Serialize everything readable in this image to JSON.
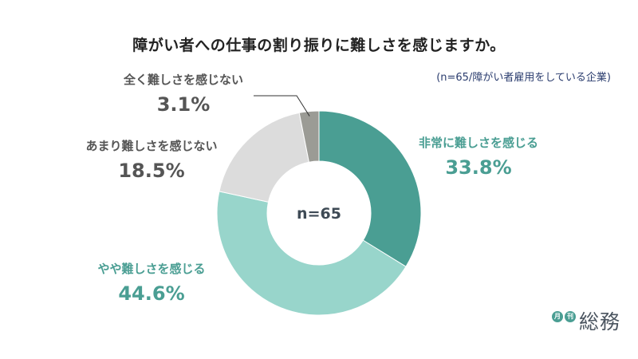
{
  "title": "障がい者への仕事の割り振りに難しさを感じますか。",
  "subtitle": "(n=65/障がい者雇用をしている企業)",
  "brand": {
    "tag1": "月",
    "tag2": "刊",
    "name": "総務"
  },
  "chart_data": {
    "type": "pie",
    "title": "障がい者への仕事の割り振りに難しさを感じますか。",
    "subtitle": "(n=65/障がい者雇用をしている企業)",
    "center_label": "n=65",
    "unit": "%",
    "slices": [
      {
        "label": "非常に難しさを感じる",
        "value": 33.8,
        "value_label": "33.8%",
        "color": "#4a9e93"
      },
      {
        "label": "やや難しさを感じる",
        "value": 44.6,
        "value_label": "44.6%",
        "color": "#98d5cb"
      },
      {
        "label": "あまり難しさを感じない",
        "value": 18.5,
        "value_label": "18.5%",
        "color": "#dcdcdc"
      },
      {
        "label": "全く難しさを感じない",
        "value": 3.1,
        "value_label": "3.1%",
        "color": "#9b9b95"
      }
    ],
    "label_colors": {
      "dark": "#555555",
      "accent": "#4a9e93"
    }
  }
}
